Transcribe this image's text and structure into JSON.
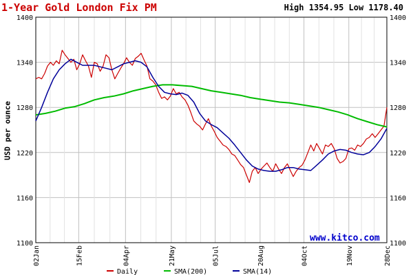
{
  "header": {
    "title": "1-Year Gold London Fix PM",
    "stats": "High 1354.95 Low 1178.40"
  },
  "watermark": "www.kitco.com",
  "colors": {
    "daily": "#cc0000",
    "sma200": "#00bb00",
    "sma14": "#000099",
    "title": "#cc0000",
    "grid": "#c0c0c0"
  },
  "chart_data": {
    "type": "line",
    "title": "1-Year Gold London Fix PM",
    "ylabel": "USD per ounce",
    "xlabel": "",
    "ylim": [
      1100,
      1400
    ],
    "xlim": [
      0,
      360
    ],
    "yticks": [
      1100,
      1160,
      1220,
      1280,
      1340,
      1400
    ],
    "xticks": [
      {
        "label": "02Jan",
        "x": 0
      },
      {
        "label": "15Feb",
        "x": 44
      },
      {
        "label": "04Apr",
        "x": 92
      },
      {
        "label": "21May",
        "x": 139
      },
      {
        "label": "05Jul",
        "x": 184
      },
      {
        "label": "20Aug",
        "x": 230
      },
      {
        "label": "04Oct",
        "x": 275
      },
      {
        "label": "19Nov",
        "x": 321
      },
      {
        "label": "28Dec",
        "x": 360
      }
    ],
    "grid": true,
    "legend_position": "bottom",
    "series": [
      {
        "name": "Daily",
        "x": [
          0,
          3,
          6,
          9,
          12,
          15,
          18,
          21,
          24,
          27,
          30,
          33,
          36,
          39,
          42,
          45,
          48,
          51,
          54,
          57,
          60,
          63,
          66,
          69,
          72,
          75,
          78,
          81,
          84,
          87,
          90,
          93,
          96,
          99,
          102,
          105,
          108,
          111,
          114,
          117,
          120,
          123,
          126,
          129,
          132,
          135,
          138,
          141,
          144,
          147,
          150,
          153,
          156,
          159,
          162,
          165,
          168,
          171,
          174,
          177,
          180,
          183,
          186,
          189,
          192,
          195,
          198,
          201,
          204,
          207,
          210,
          213,
          216,
          219,
          222,
          225,
          228,
          231,
          234,
          237,
          240,
          243,
          246,
          249,
          252,
          255,
          258,
          261,
          264,
          267,
          270,
          273,
          276,
          279,
          282,
          285,
          288,
          291,
          294,
          297,
          300,
          303,
          306,
          309,
          312,
          315,
          318,
          321,
          324,
          327,
          330,
          333,
          336,
          339,
          342,
          345,
          348,
          351,
          354,
          357,
          360
        ],
        "values": [
          1318,
          1320,
          1318,
          1325,
          1335,
          1340,
          1336,
          1342,
          1338,
          1356,
          1350,
          1345,
          1340,
          1344,
          1330,
          1338,
          1350,
          1342,
          1335,
          1320,
          1340,
          1338,
          1328,
          1335,
          1350,
          1346,
          1330,
          1318,
          1325,
          1332,
          1338,
          1346,
          1340,
          1336,
          1345,
          1348,
          1352,
          1343,
          1335,
          1318,
          1315,
          1310,
          1300,
          1292,
          1294,
          1290,
          1295,
          1305,
          1298,
          1300,
          1294,
          1290,
          1283,
          1273,
          1262,
          1258,
          1255,
          1250,
          1258,
          1265,
          1255,
          1248,
          1240,
          1235,
          1230,
          1228,
          1224,
          1218,
          1216,
          1210,
          1204,
          1200,
          1190,
          1180,
          1195,
          1200,
          1192,
          1198,
          1202,
          1206,
          1200,
          1195,
          1205,
          1198,
          1192,
          1200,
          1205,
          1196,
          1188,
          1195,
          1200,
          1203,
          1210,
          1220,
          1230,
          1222,
          1232,
          1225,
          1218,
          1230,
          1228,
          1232,
          1225,
          1212,
          1206,
          1208,
          1212,
          1225,
          1226,
          1223,
          1230,
          1228,
          1232,
          1238,
          1240,
          1245,
          1240,
          1245,
          1250,
          1255,
          1280
        ]
      },
      {
        "name": "SMA(200)",
        "x": [
          0,
          10,
          20,
          30,
          40,
          50,
          60,
          70,
          80,
          90,
          100,
          110,
          120,
          130,
          140,
          150,
          160,
          170,
          180,
          190,
          200,
          210,
          220,
          230,
          240,
          250,
          260,
          270,
          280,
          290,
          300,
          310,
          320,
          330,
          340,
          350,
          360
        ],
        "values": [
          1270,
          1272,
          1275,
          1279,
          1281,
          1285,
          1290,
          1293,
          1295,
          1298,
          1302,
          1305,
          1308,
          1310,
          1310,
          1309,
          1308,
          1305,
          1302,
          1300,
          1298,
          1296,
          1293,
          1291,
          1289,
          1287,
          1286,
          1284,
          1282,
          1280,
          1277,
          1274,
          1270,
          1265,
          1261,
          1257,
          1254
        ]
      },
      {
        "name": "SMA(14)",
        "x": [
          0,
          6,
          12,
          18,
          24,
          30,
          36,
          42,
          48,
          54,
          60,
          66,
          72,
          78,
          84,
          90,
          96,
          102,
          108,
          114,
          120,
          126,
          132,
          138,
          144,
          150,
          156,
          162,
          168,
          174,
          180,
          186,
          192,
          198,
          204,
          210,
          216,
          222,
          228,
          234,
          240,
          246,
          252,
          258,
          264,
          270,
          276,
          282,
          288,
          294,
          300,
          306,
          312,
          318,
          324,
          330,
          336,
          342,
          348,
          354,
          360
        ],
        "values": [
          1262,
          1280,
          1300,
          1318,
          1330,
          1338,
          1344,
          1340,
          1336,
          1336,
          1336,
          1334,
          1332,
          1330,
          1334,
          1338,
          1340,
          1342,
          1340,
          1334,
          1320,
          1308,
          1300,
          1298,
          1297,
          1299,
          1296,
          1287,
          1272,
          1262,
          1257,
          1253,
          1246,
          1239,
          1230,
          1220,
          1210,
          1202,
          1198,
          1196,
          1195,
          1195,
          1197,
          1200,
          1200,
          1198,
          1197,
          1196,
          1203,
          1210,
          1218,
          1222,
          1224,
          1223,
          1220,
          1218,
          1217,
          1220,
          1228,
          1238,
          1252
        ]
      }
    ]
  }
}
